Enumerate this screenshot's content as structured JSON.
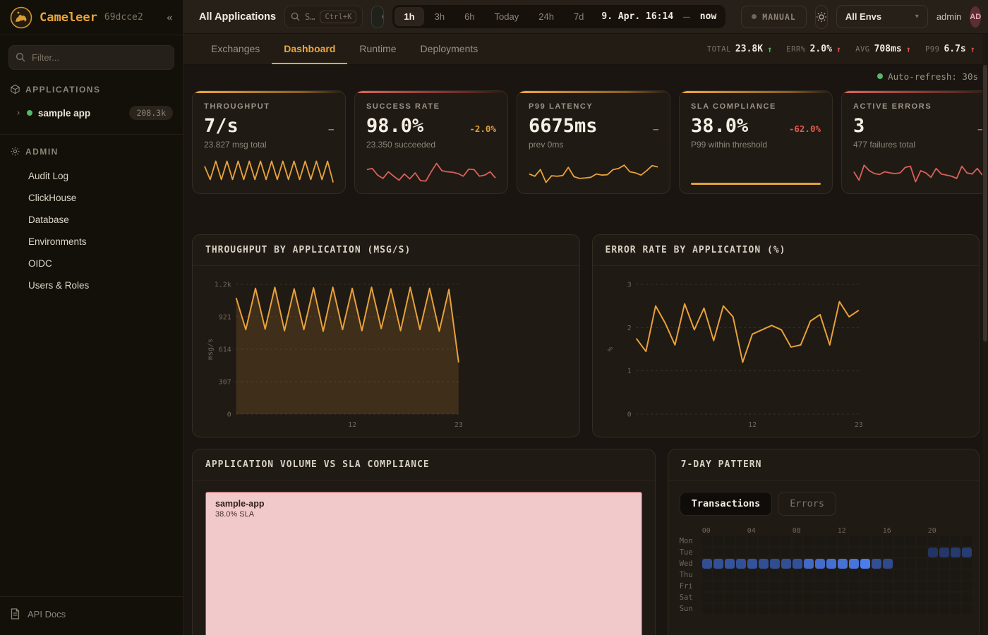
{
  "sidebar": {
    "brand": {
      "name": "Cameleer",
      "version": "69dcce2"
    },
    "filter_placeholder": "Filter...",
    "applications_label": "APPLICATIONS",
    "admin_label": "ADMIN",
    "app": {
      "name": "sample app",
      "badge": "208.3k"
    },
    "admin_items": [
      "Audit Log",
      "ClickHouse",
      "Database",
      "Environments",
      "OIDC",
      "Users & Roles"
    ],
    "api_docs": "API Docs"
  },
  "topbar": {
    "title": "All Applications",
    "search": {
      "text": "S…",
      "kbd": "Ctrl+K"
    },
    "status_pill": "O",
    "ranges": [
      "1h",
      "3h",
      "6h",
      "Today",
      "24h",
      "7d"
    ],
    "active_range": "1h",
    "date_from": "9. Apr. 16:14",
    "date_sep": "–",
    "date_to": "now",
    "manual_label": "MANUAL",
    "env_selected": "All Envs",
    "user": "admin",
    "avatar": "AD"
  },
  "tabs": {
    "items": [
      "Exchanges",
      "Dashboard",
      "Runtime",
      "Deployments"
    ],
    "active": "Dashboard"
  },
  "topstats": [
    {
      "label": "TOTAL",
      "value": "23.8K",
      "arrow": "up",
      "color": "#57b868"
    },
    {
      "label": "ERR%",
      "value": "2.0%",
      "arrow": "up",
      "color": "#d9534a"
    },
    {
      "label": "AVG",
      "value": "708ms",
      "arrow": "up",
      "color": "#d9534a"
    },
    {
      "label": "P99",
      "value": "6.7s",
      "arrow": "up",
      "color": "#d9534a"
    }
  ],
  "auto_refresh": "Auto-refresh: 30s",
  "colors": {
    "amber": "#e8a23b",
    "red": "#d9605a",
    "green": "#57b868",
    "muted": "#8d8578",
    "delta_orange": "#dd9f3d",
    "delta_red": "#e05a52"
  },
  "kpis": [
    {
      "label": "THROUGHPUT",
      "value": "7/s",
      "delta": "–",
      "delta_color": "#8d8578",
      "sub": "23.827 msg total",
      "accent": "amber",
      "spark_color": "#e8a23b",
      "spark": [
        0.75,
        0.15,
        0.98,
        0.15,
        0.98,
        0.15,
        0.98,
        0.15,
        0.98,
        0.15,
        0.98,
        0.15,
        0.98,
        0.15,
        0.98,
        0.15,
        0.98,
        0.15,
        0.98,
        0.15,
        0.98,
        0.15,
        0.98,
        0.02
      ]
    },
    {
      "label": "SUCCESS RATE",
      "value": "98.0%",
      "delta": "-2.0%",
      "delta_color": "#dd9f3d",
      "sub": "23.350 succeeded",
      "accent": "red",
      "spark_color": "#d9605a",
      "spark": [
        0.6,
        0.65,
        0.35,
        0.2,
        0.5,
        0.3,
        0.12,
        0.4,
        0.18,
        0.45,
        0.1,
        0.08,
        0.5,
        0.88,
        0.55,
        0.5,
        0.48,
        0.42,
        0.3,
        0.62,
        0.6,
        0.3,
        0.35,
        0.5,
        0.22
      ]
    },
    {
      "label": "P99 LATENCY",
      "value": "6675ms",
      "delta": "–",
      "delta_color": "#e05a52",
      "sub": "prev 0ms",
      "accent": "amber",
      "spark_color": "#e8a23b",
      "spark": [
        0.4,
        0.3,
        0.6,
        0.02,
        0.32,
        0.3,
        0.33,
        0.7,
        0.28,
        0.2,
        0.22,
        0.25,
        0.4,
        0.35,
        0.37,
        0.6,
        0.65,
        0.8,
        0.5,
        0.45,
        0.35,
        0.55,
        0.78,
        0.72
      ]
    },
    {
      "label": "SLA COMPLIANCE",
      "value": "38.0%",
      "delta": "-62.0%",
      "delta_color": "#e05a52",
      "sub": "P99 within threshold",
      "accent": "amber",
      "bar": true
    },
    {
      "label": "ACTIVE ERRORS",
      "value": "3",
      "delta": "–",
      "delta_color": "#e05a52",
      "sub": "477 failures total",
      "accent": "red",
      "spark_color": "#d9605a",
      "spark": [
        0.5,
        0.12,
        0.8,
        0.55,
        0.42,
        0.38,
        0.5,
        0.45,
        0.42,
        0.45,
        0.7,
        0.75,
        0.05,
        0.55,
        0.45,
        0.25,
        0.65,
        0.4,
        0.35,
        0.3,
        0.2,
        0.75,
        0.45,
        0.4,
        0.65,
        0.35
      ]
    }
  ],
  "charts": {
    "throughput": {
      "type": "area",
      "title": "THROUGHPUT BY APPLICATION (MSG/S)",
      "ylabel": "msg/s",
      "ylim": [
        0,
        1228
      ],
      "yticks": [
        {
          "v": 0,
          "l": "0"
        },
        {
          "v": 307,
          "l": "307"
        },
        {
          "v": 614,
          "l": "614"
        },
        {
          "v": 921,
          "l": "921"
        },
        {
          "v": 1228,
          "l": "1.2k"
        }
      ],
      "xticks": [
        {
          "i": 12,
          "l": "12"
        },
        {
          "i": 23,
          "l": "23"
        }
      ],
      "color": "#e8a23b",
      "values": [
        1100,
        800,
        1190,
        805,
        1200,
        790,
        1185,
        800,
        1195,
        785,
        1200,
        800,
        1190,
        790,
        1200,
        810,
        1185,
        790,
        1200,
        800,
        1190,
        785,
        1180,
        490
      ]
    },
    "error_rate": {
      "type": "line",
      "title": "ERROR RATE BY APPLICATION (%)",
      "ylabel": "%",
      "ylim": [
        0,
        3
      ],
      "yticks": [
        {
          "v": 0,
          "l": "0"
        },
        {
          "v": 1,
          "l": "1"
        },
        {
          "v": 2,
          "l": "2"
        },
        {
          "v": 3,
          "l": "3"
        }
      ],
      "xticks": [
        {
          "i": 12,
          "l": "12"
        },
        {
          "i": 23,
          "l": "23"
        }
      ],
      "color": "#e8a23b",
      "values": [
        1.75,
        1.45,
        2.5,
        2.1,
        1.6,
        2.55,
        1.95,
        2.45,
        1.7,
        2.5,
        2.25,
        1.2,
        1.85,
        1.95,
        2.05,
        1.95,
        1.55,
        1.6,
        2.15,
        2.3,
        1.6,
        2.6,
        2.25,
        2.4
      ]
    }
  },
  "treemap_card": {
    "title": "APPLICATION VOLUME VS SLA COMPLIANCE",
    "box": {
      "name": "sample-app",
      "sla": "38.0% SLA"
    }
  },
  "pattern_card": {
    "title": "7-DAY PATTERN",
    "toggles": [
      "Transactions",
      "Errors"
    ],
    "active_toggle": "Transactions",
    "hour_labels": [
      "00",
      "04",
      "08",
      "12",
      "16",
      "20"
    ],
    "days": [
      "Mon",
      "Tue",
      "Wed",
      "Thu",
      "Fri",
      "Sat",
      "Sun"
    ],
    "grid": {
      "Mon": [
        0,
        0,
        0,
        0,
        0,
        0,
        0,
        0,
        0,
        0,
        0,
        0,
        0,
        0,
        0,
        0,
        0,
        0,
        0,
        0,
        0,
        0,
        0,
        0
      ],
      "Tue": [
        0,
        0,
        0,
        0,
        0,
        0,
        0,
        0,
        0,
        0,
        0,
        0,
        0,
        0,
        0,
        0,
        0,
        0,
        0,
        0,
        0.22,
        0.25,
        0.28,
        0.3
      ],
      "Wed": [
        0.5,
        0.52,
        0.55,
        0.52,
        0.55,
        0.5,
        0.48,
        0.5,
        0.52,
        0.78,
        0.82,
        0.85,
        0.88,
        0.9,
        1.0,
        0.5,
        0.45,
        0,
        0,
        0,
        0,
        0,
        0,
        0
      ],
      "Thu": [
        0,
        0,
        0,
        0,
        0,
        0,
        0,
        0,
        0,
        0,
        0,
        0,
        0,
        0,
        0,
        0,
        0,
        0,
        0,
        0,
        0,
        0,
        0,
        0
      ],
      "Fri": [
        0,
        0,
        0,
        0,
        0,
        0,
        0,
        0,
        0,
        0,
        0,
        0,
        0,
        0,
        0,
        0,
        0,
        0,
        0,
        0,
        0,
        0,
        0,
        0
      ],
      "Sat": [
        0,
        0,
        0,
        0,
        0,
        0,
        0,
        0,
        0,
        0,
        0,
        0,
        0,
        0,
        0,
        0,
        0,
        0,
        0,
        0,
        0,
        0,
        0,
        0
      ],
      "Sun": [
        0,
        0,
        0,
        0,
        0,
        0,
        0,
        0,
        0,
        0,
        0,
        0,
        0,
        0,
        0,
        0,
        0,
        0,
        0,
        0,
        0,
        0,
        0,
        0
      ]
    }
  }
}
